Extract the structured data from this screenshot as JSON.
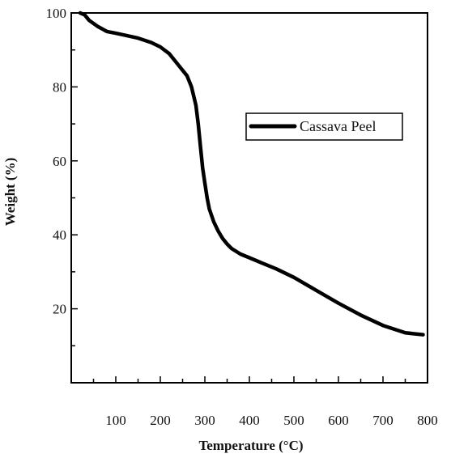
{
  "chart_data": {
    "type": "line",
    "title": "",
    "xlabel": "Temperature (°C)",
    "ylabel": "Weight (%)",
    "xlim": [
      0,
      800
    ],
    "ylim": [
      0,
      100
    ],
    "x_ticks": [
      100,
      200,
      300,
      400,
      500,
      600,
      700,
      800
    ],
    "y_ticks": [
      20,
      40,
      60,
      80,
      100
    ],
    "grid": false,
    "legend_position": "upper-right",
    "line_color": "#000000",
    "series": [
      {
        "name": "Cassava Peel",
        "x": [
          20,
          30,
          40,
          60,
          80,
          100,
          120,
          150,
          180,
          200,
          220,
          240,
          260,
          270,
          280,
          285,
          290,
          295,
          300,
          305,
          310,
          320,
          330,
          340,
          350,
          360,
          380,
          400,
          430,
          460,
          500,
          550,
          600,
          650,
          700,
          750,
          790
        ],
        "y": [
          100,
          99.5,
          98,
          96.3,
          95,
          94.5,
          94,
          93.2,
          92,
          90.8,
          89,
          86,
          83,
          80,
          75,
          70,
          64,
          58,
          54,
          50,
          47,
          43.5,
          41,
          39,
          37.5,
          36.3,
          34.8,
          33.8,
          32.3,
          30.8,
          28.5,
          25,
          21.5,
          18.3,
          15.5,
          13.5,
          13
        ]
      }
    ]
  }
}
